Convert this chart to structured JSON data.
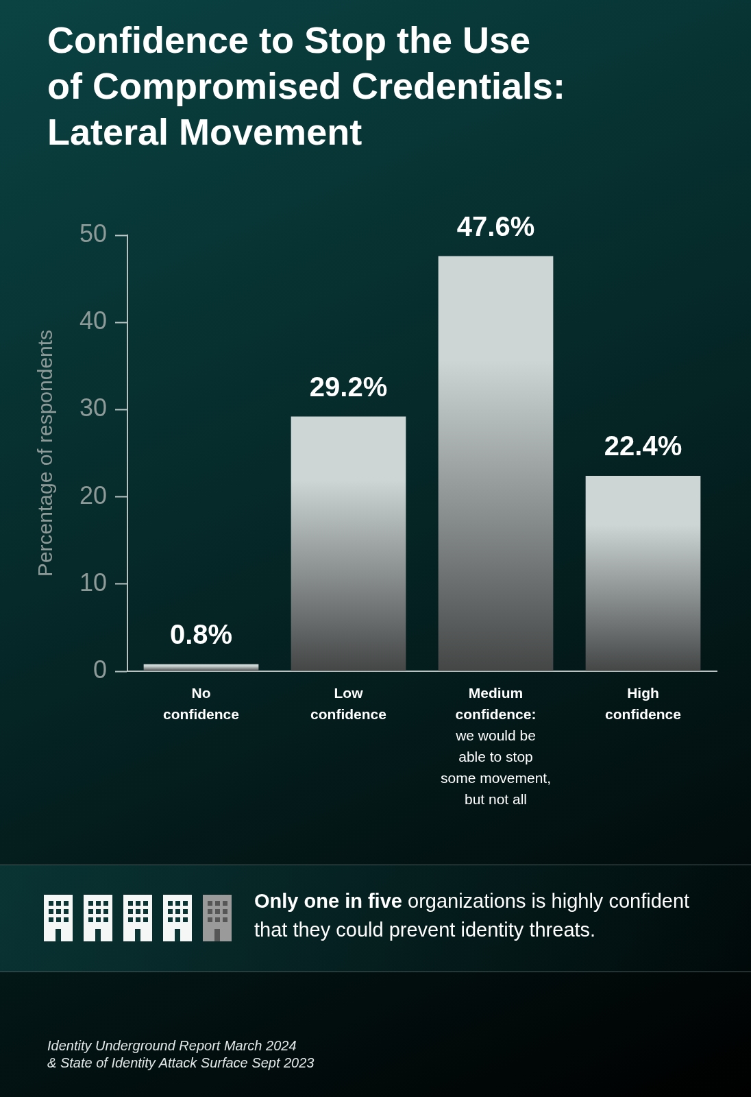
{
  "chart_data": {
    "type": "bar",
    "title": "Confidence to Stop the Use of Compromised Credentials: Lateral Movement",
    "ylabel": "Percentage of respondents",
    "categories": [
      "No\nconfidence",
      "Low\nconfidence",
      "Medium\nconfidence:\nwe would be\nable to stop\nsome movement,\nbut not all",
      "High\nconfidence"
    ],
    "values": [
      0.8,
      29.2,
      47.6,
      22.4
    ],
    "value_labels": [
      "0.8%",
      "29.2%",
      "47.6%",
      "22.4%"
    ],
    "color": "#cdd5d5",
    "ylim": [
      0,
      50
    ],
    "yticks": [
      0,
      10,
      20,
      30,
      40,
      50
    ],
    "grid": false,
    "legend": false,
    "annotations": [
      "Only one in five",
      "organizations is highly confident that they could prevent identity threats.",
      "Identity Underground Report March 2024",
      "& State of Identity Attack Surface Sept 2023"
    ]
  }
}
